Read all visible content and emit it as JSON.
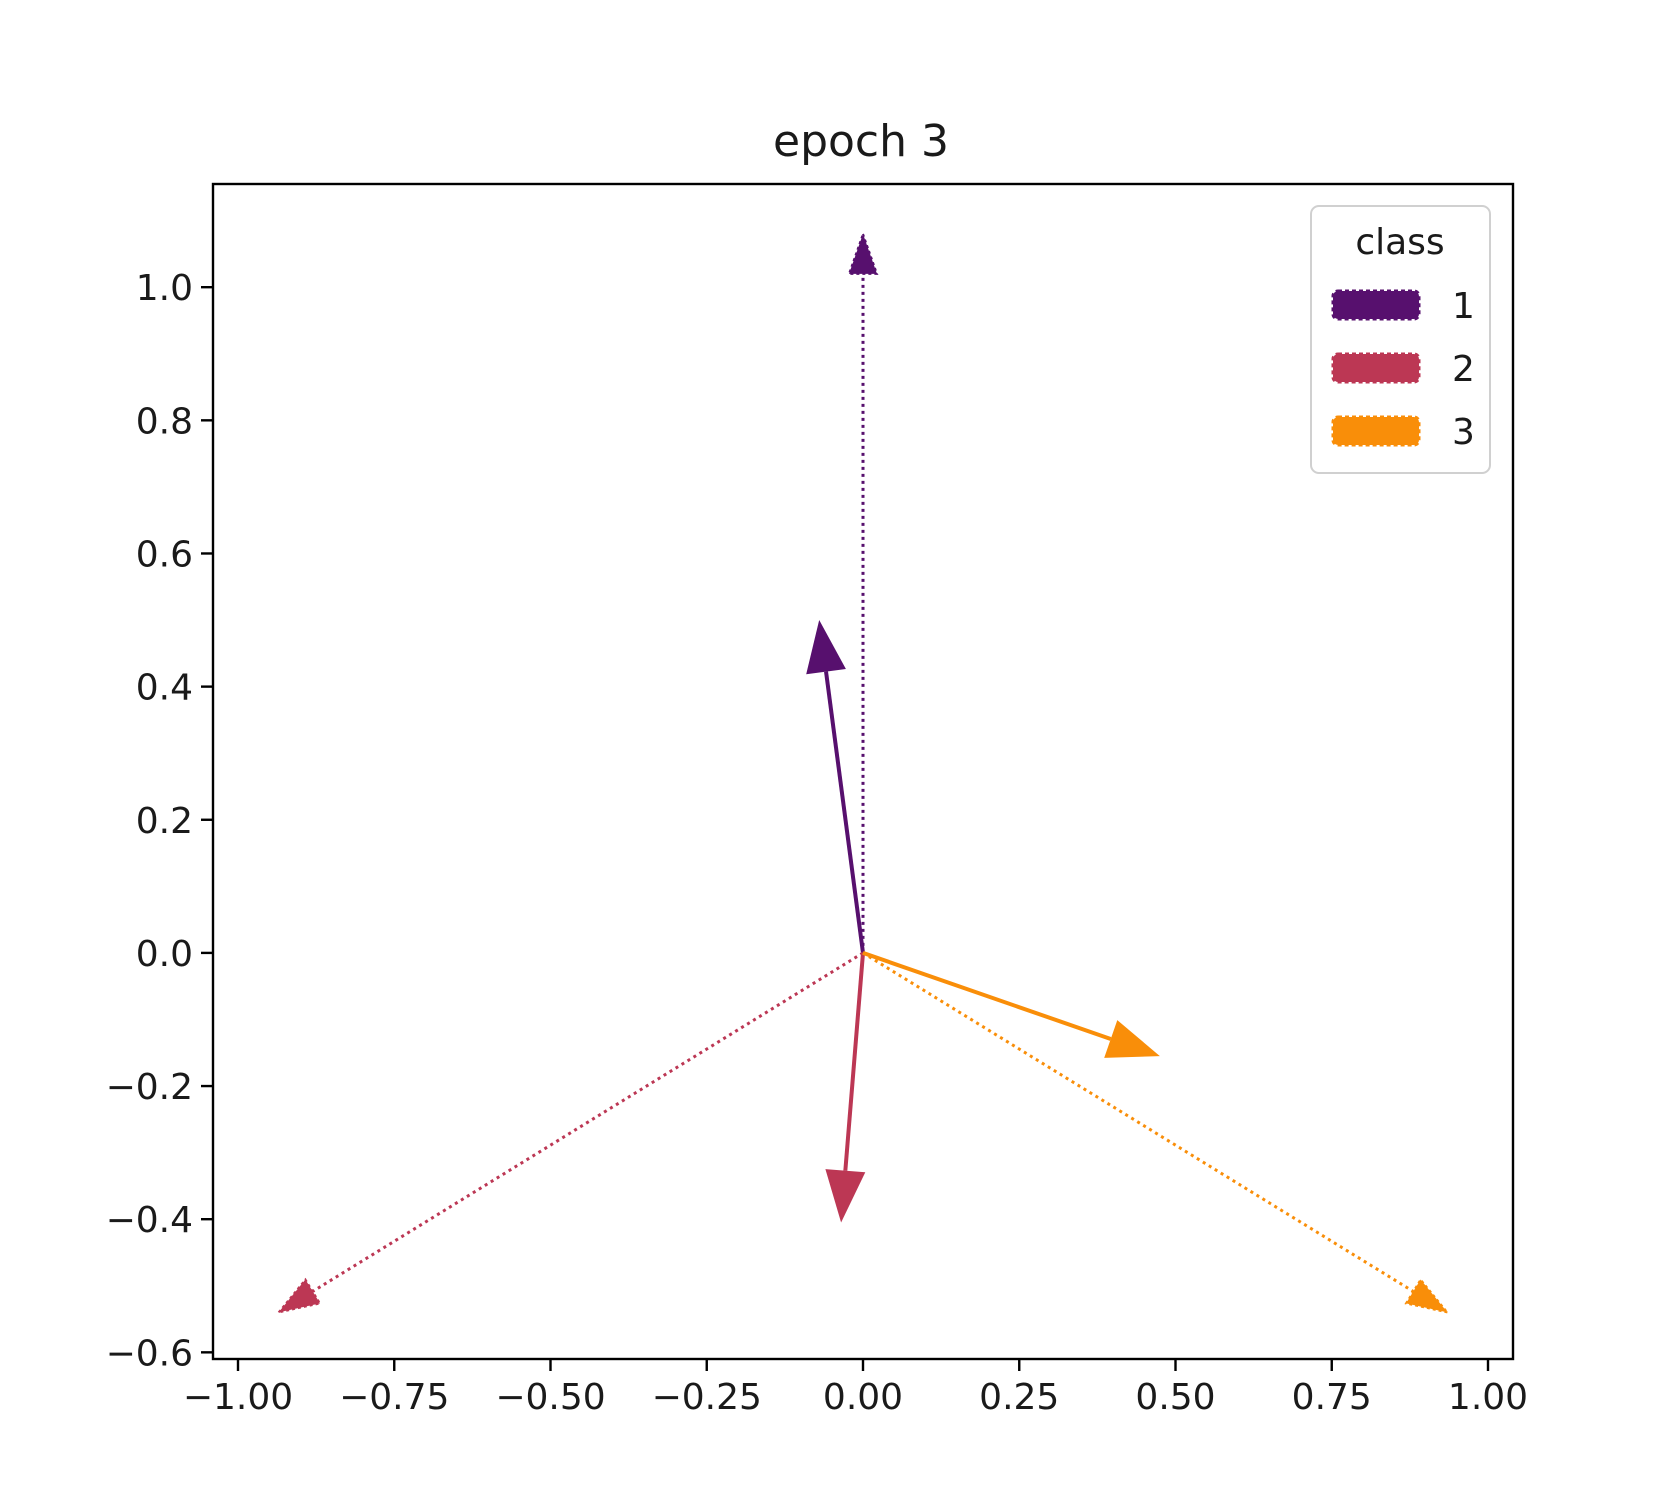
{
  "chart_data": {
    "type": "quiver",
    "title": "epoch 3",
    "xlabel": "",
    "ylabel": "",
    "xlim": [
      -1.04,
      1.04
    ],
    "ylim": [
      -0.61,
      1.155
    ],
    "xticks": [
      -1.0,
      -0.75,
      -0.5,
      -0.25,
      0.0,
      0.25,
      0.5,
      0.75,
      1.0
    ],
    "xtick_labels": [
      "−1.00",
      "−0.75",
      "−0.50",
      "−0.25",
      "0.00",
      "0.25",
      "0.50",
      "0.75",
      "1.00"
    ],
    "yticks": [
      -0.6,
      -0.4,
      -0.2,
      0.0,
      0.2,
      0.4,
      0.6,
      0.8,
      1.0
    ],
    "ytick_labels": [
      "−0.6",
      "−0.4",
      "−0.2",
      "0.0",
      "0.2",
      "0.4",
      "0.6",
      "0.8",
      "1.0"
    ],
    "grid": false,
    "legend": {
      "title": "class",
      "placement": "top-right",
      "entries": [
        {
          "label": "1",
          "color": "#57106e"
        },
        {
          "label": "2",
          "color": "#bc3754"
        },
        {
          "label": "3",
          "color": "#f98e09"
        }
      ]
    },
    "series": [
      {
        "name": "1",
        "color": "#57106e",
        "vectors": [
          {
            "x0": 0,
            "y0": 0,
            "x1": 0.0,
            "y1": 1.08,
            "style": "dotted"
          },
          {
            "x0": 0,
            "y0": 0,
            "x1": -0.07,
            "y1": 0.5,
            "style": "solid"
          }
        ]
      },
      {
        "name": "2",
        "color": "#bc3754",
        "vectors": [
          {
            "x0": 0,
            "y0": 0,
            "x1": -0.935,
            "y1": -0.54,
            "style": "dotted"
          },
          {
            "x0": 0,
            "y0": 0,
            "x1": -0.035,
            "y1": -0.405,
            "style": "solid"
          }
        ]
      },
      {
        "name": "3",
        "color": "#f98e09",
        "vectors": [
          {
            "x0": 0,
            "y0": 0,
            "x1": 0.935,
            "y1": -0.54,
            "style": "dotted"
          },
          {
            "x0": 0,
            "y0": 0,
            "x1": 0.475,
            "y1": -0.155,
            "style": "solid"
          }
        ]
      }
    ]
  }
}
